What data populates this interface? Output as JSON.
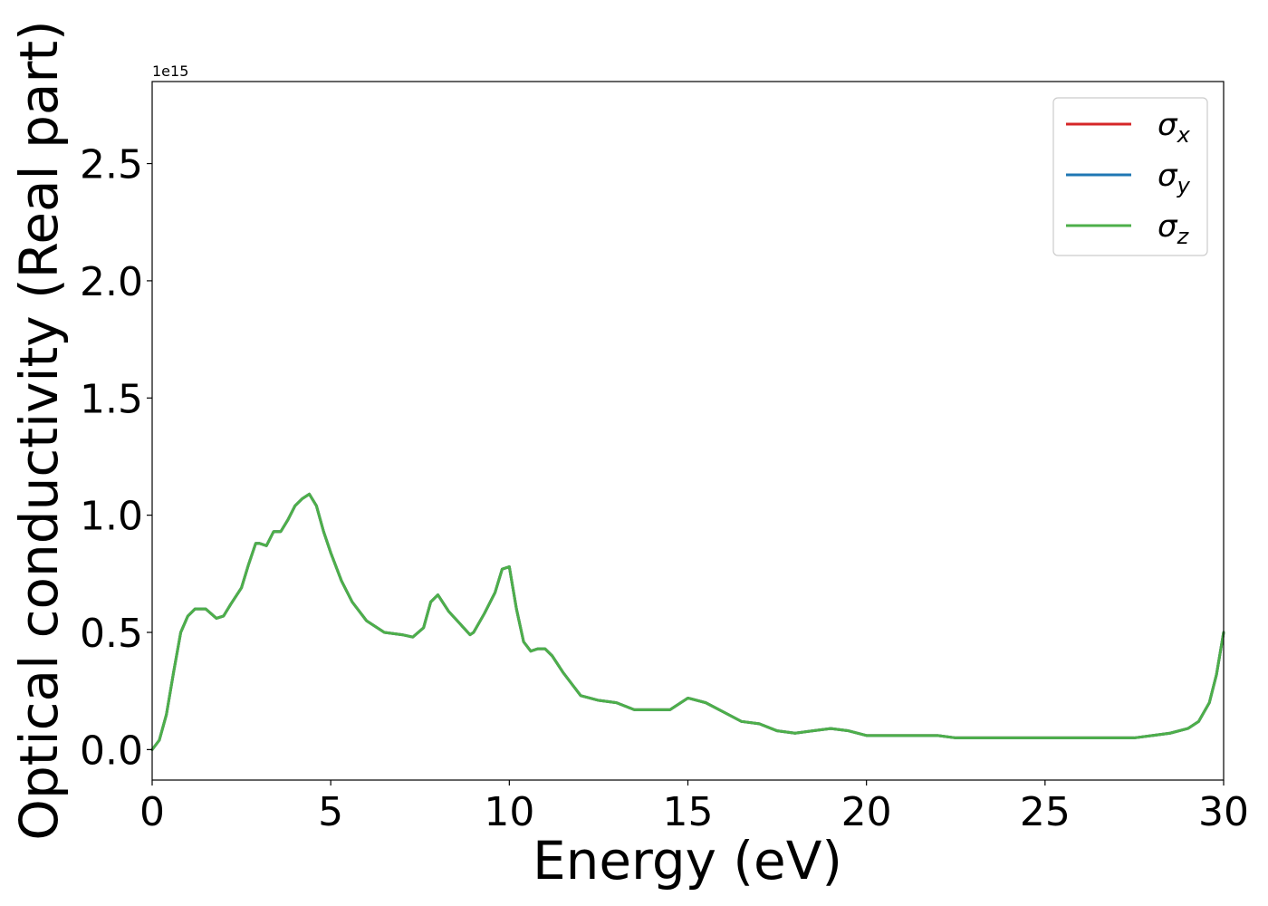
{
  "chart_data": {
    "type": "line",
    "xlabel": "Energy (eV)",
    "ylabel": "Optical conductivity (Real part)",
    "offset_text": "1e15",
    "xlim": [
      0,
      30
    ],
    "ylim": [
      -0.13,
      2.85
    ],
    "y_scale": 1000000000000000.0,
    "x_ticks": [
      0,
      5,
      10,
      15,
      20,
      25,
      30
    ],
    "x_tick_labels": [
      "0",
      "5",
      "10",
      "15",
      "20",
      "25",
      "30"
    ],
    "y_ticks": [
      0.0,
      0.5,
      1.0,
      1.5,
      2.0,
      2.5
    ],
    "y_tick_labels": [
      "0.0",
      "0.5",
      "1.0",
      "1.5",
      "2.0",
      "2.5"
    ],
    "grid": false,
    "legend_position": "top-right",
    "series": [
      {
        "name": "σx",
        "symbol": "σ",
        "subscript": "x",
        "color": "#d62728"
      },
      {
        "name": "σy",
        "symbol": "σ",
        "subscript": "y",
        "color": "#1f77b4"
      },
      {
        "name": "σz",
        "symbol": "σ",
        "subscript": "z",
        "color": "#4daf4a"
      }
    ],
    "x": [
      0,
      0.2,
      0.4,
      0.6,
      0.8,
      1.0,
      1.2,
      1.5,
      1.8,
      2.0,
      2.2,
      2.5,
      2.7,
      2.9,
      3.0,
      3.2,
      3.4,
      3.6,
      3.8,
      4.0,
      4.2,
      4.4,
      4.6,
      4.8,
      5.0,
      5.3,
      5.6,
      6.0,
      6.5,
      7.0,
      7.3,
      7.6,
      7.8,
      8.0,
      8.3,
      8.6,
      8.9,
      9.0,
      9.3,
      9.6,
      9.8,
      10.0,
      10.2,
      10.4,
      10.6,
      10.8,
      11.0,
      11.2,
      11.5,
      12.0,
      12.5,
      13.0,
      13.5,
      14.0,
      14.5,
      15.0,
      15.5,
      16.0,
      16.5,
      17.0,
      17.5,
      18.0,
      18.5,
      19.0,
      19.5,
      20.0,
      21.0,
      22.0,
      22.5,
      23.0,
      24.0,
      24.5,
      25.0,
      26.0,
      26.5,
      27.0,
      27.5,
      28.0,
      28.5,
      29.0,
      29.3,
      29.6,
      29.8,
      30.0
    ],
    "values": [
      0.0,
      0.04,
      0.15,
      0.33,
      0.5,
      0.57,
      0.6,
      0.6,
      0.56,
      0.57,
      0.62,
      0.69,
      0.79,
      0.88,
      0.88,
      0.87,
      0.93,
      0.93,
      0.98,
      1.04,
      1.07,
      1.09,
      1.04,
      0.93,
      0.84,
      0.72,
      0.63,
      0.55,
      0.5,
      0.49,
      0.48,
      0.52,
      0.63,
      0.66,
      0.59,
      0.54,
      0.49,
      0.5,
      0.58,
      0.67,
      0.77,
      0.78,
      0.6,
      0.46,
      0.42,
      0.43,
      0.43,
      0.4,
      0.33,
      0.23,
      0.21,
      0.2,
      0.17,
      0.17,
      0.17,
      0.22,
      0.2,
      0.16,
      0.12,
      0.11,
      0.08,
      0.07,
      0.08,
      0.09,
      0.08,
      0.06,
      0.06,
      0.06,
      0.05,
      0.05,
      0.05,
      0.05,
      0.05,
      0.05,
      0.05,
      0.05,
      0.05,
      0.06,
      0.07,
      0.09,
      0.12,
      0.2,
      0.32,
      0.5
    ]
  }
}
